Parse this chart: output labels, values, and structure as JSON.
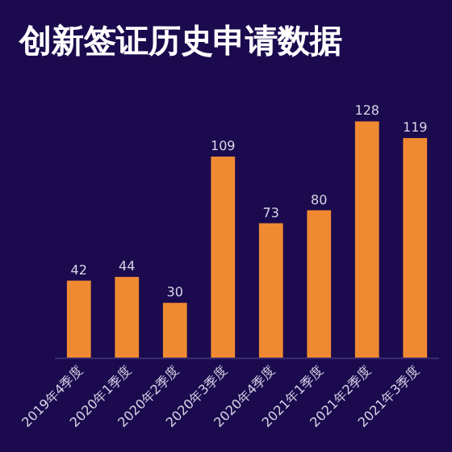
{
  "chart_data": {
    "type": "bar",
    "title": "创新签证历史申请数据",
    "categories": [
      "2019年4季度",
      "2020年1季度",
      "2020年2季度",
      "2020年3季度",
      "2020年4季度",
      "2021年1季度",
      "2021年2季度",
      "2021年3季度"
    ],
    "values": [
      42,
      44,
      30,
      109,
      73,
      80,
      128,
      119
    ],
    "color": "#f08a32",
    "tick_labels": "x",
    "data_labels": true
  }
}
